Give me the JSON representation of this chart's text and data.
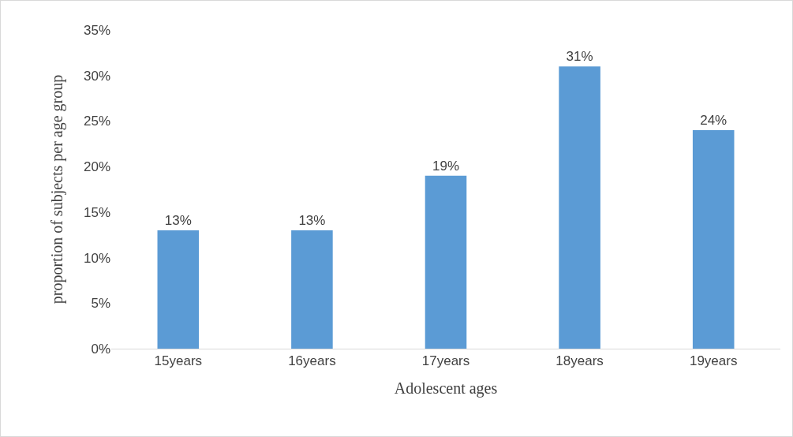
{
  "chart_data": {
    "type": "bar",
    "xlabel": "Adolescent ages",
    "ylabel": "proportion of subjects per age group",
    "categories": [
      "15years",
      "16years",
      "17years",
      "18years",
      "19years"
    ],
    "values": [
      13,
      13,
      19,
      31,
      24
    ],
    "color": "#5b9bd5",
    "value_labels": [
      "13%",
      "13%",
      "19%",
      "31%",
      "24%"
    ],
    "ylim": [
      0,
      35
    ],
    "yticks": [
      {
        "value": 0,
        "label": "0%"
      },
      {
        "value": 5,
        "label": "5%"
      },
      {
        "value": 10,
        "label": "10%"
      },
      {
        "value": 15,
        "label": "15%"
      },
      {
        "value": 20,
        "label": "20%"
      },
      {
        "value": 25,
        "label": "25%"
      },
      {
        "value": 30,
        "label": "30%"
      },
      {
        "value": 35,
        "label": "35%"
      }
    ],
    "grid": false,
    "legend": false
  }
}
